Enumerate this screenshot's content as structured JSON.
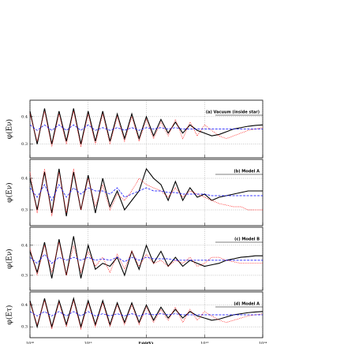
{
  "chart_data": [
    {
      "type": "line",
      "annotation": "(a) Vacuum (inside star)",
      "ylabel": "φ(Eν)",
      "log_x": true,
      "grid": true,
      "xlim": [
        10000000000.0,
        100000000000000.0
      ],
      "ylim": [
        0.25,
        0.46
      ],
      "yticks": [
        0.3,
        0.4
      ],
      "x": [
        10000000000.0,
        13300000000.0,
        17800000000.0,
        23700000000.0,
        31600000000.0,
        42200000000.0,
        56200000000.0,
        75000000000.0,
        100000000000.0,
        133000000000.0,
        178000000000.0,
        237000000000.0,
        316000000000.0,
        422000000000.0,
        562000000000.0,
        750000000000.0,
        1000000000000.0,
        1330000000000.0,
        1780000000000.0,
        2370000000000.0,
        3160000000000.0,
        4220000000000.0,
        5620000000000.0,
        7500000000000.0,
        10000000000000.0,
        13300000000000.0,
        17800000000000.0,
        23700000000000.0,
        31600000000000.0,
        42200000000000.0,
        56200000000000.0,
        75000000000000.0,
        100000000000000.0
      ],
      "series": [
        {
          "color": "#000000",
          "values": [
            0.42,
            0.3,
            0.43,
            0.3,
            0.42,
            0.31,
            0.43,
            0.3,
            0.42,
            0.31,
            0.42,
            0.31,
            0.41,
            0.32,
            0.41,
            0.32,
            0.4,
            0.33,
            0.39,
            0.34,
            0.38,
            0.34,
            0.37,
            0.35,
            0.34,
            0.33,
            0.335,
            0.345,
            0.355,
            0.36,
            0.365,
            0.368,
            0.37
          ]
        },
        {
          "color": "#ff0000",
          "values": [
            0.41,
            0.31,
            0.42,
            0.29,
            0.41,
            0.3,
            0.42,
            0.29,
            0.41,
            0.3,
            0.41,
            0.3,
            0.4,
            0.31,
            0.4,
            0.31,
            0.39,
            0.32,
            0.38,
            0.33,
            0.39,
            0.32,
            0.38,
            0.33,
            0.37,
            0.35,
            0.33,
            0.32,
            0.33,
            0.34,
            0.35,
            0.355,
            0.36
          ]
        },
        {
          "color": "#0000ff",
          "values": [
            0.37,
            0.35,
            0.37,
            0.35,
            0.37,
            0.35,
            0.37,
            0.35,
            0.37,
            0.35,
            0.36,
            0.35,
            0.36,
            0.35,
            0.36,
            0.35,
            0.36,
            0.355,
            0.36,
            0.355,
            0.36,
            0.355,
            0.355,
            0.355,
            0.355,
            0.355,
            0.355,
            0.355,
            0.355,
            0.355,
            0.355,
            0.355,
            0.355
          ]
        }
      ]
    },
    {
      "type": "line",
      "annotation": "(b) Model A",
      "ylabel": "φ(Eν)",
      "log_x": true,
      "grid": true,
      "xlim": [
        10000000000.0,
        100000000000000.0
      ],
      "ylim": [
        0.25,
        0.46
      ],
      "yticks": [
        0.3,
        0.4
      ],
      "x": [
        10000000000.0,
        13300000000.0,
        17800000000.0,
        23700000000.0,
        31600000000.0,
        42200000000.0,
        56200000000.0,
        75000000000.0,
        100000000000.0,
        133000000000.0,
        178000000000.0,
        237000000000.0,
        316000000000.0,
        422000000000.0,
        562000000000.0,
        750000000000.0,
        1000000000000.0,
        1330000000000.0,
        1780000000000.0,
        2370000000000.0,
        3160000000000.0,
        4220000000000.0,
        5620000000000.0,
        7500000000000.0,
        10000000000000.0,
        13300000000000.0,
        17800000000000.0,
        23700000000000.0,
        31600000000000.0,
        42200000000000.0,
        56200000000000.0,
        75000000000000.0,
        100000000000000.0
      ],
      "series": [
        {
          "color": "#000000",
          "values": [
            0.4,
            0.3,
            0.42,
            0.29,
            0.43,
            0.28,
            0.42,
            0.3,
            0.41,
            0.29,
            0.4,
            0.31,
            0.36,
            0.3,
            0.33,
            0.36,
            0.43,
            0.4,
            0.38,
            0.33,
            0.39,
            0.33,
            0.37,
            0.34,
            0.35,
            0.33,
            0.34,
            0.345,
            0.35,
            0.355,
            0.36,
            0.36,
            0.36
          ]
        },
        {
          "color": "#ff0000",
          "values": [
            0.42,
            0.29,
            0.43,
            0.28,
            0.42,
            0.29,
            0.43,
            0.3,
            0.4,
            0.31,
            0.38,
            0.3,
            0.35,
            0.33,
            0.36,
            0.4,
            0.38,
            0.37,
            0.36,
            0.34,
            0.37,
            0.34,
            0.36,
            0.35,
            0.34,
            0.33,
            0.32,
            0.315,
            0.31,
            0.31,
            0.3,
            0.3,
            0.3
          ]
        },
        {
          "color": "#0000ff",
          "values": [
            0.37,
            0.34,
            0.38,
            0.33,
            0.38,
            0.34,
            0.37,
            0.35,
            0.37,
            0.36,
            0.36,
            0.35,
            0.37,
            0.34,
            0.35,
            0.36,
            0.37,
            0.36,
            0.36,
            0.355,
            0.355,
            0.35,
            0.35,
            0.35,
            0.35,
            0.345,
            0.345,
            0.345,
            0.345,
            0.345,
            0.345,
            0.345,
            0.345
          ]
        }
      ]
    },
    {
      "type": "line",
      "annotation": "(c) Model B",
      "ylabel": "φ(Eν)",
      "log_x": true,
      "grid": true,
      "xlim": [
        10000000000.0,
        100000000000000.0
      ],
      "ylim": [
        0.25,
        0.46
      ],
      "yticks": [
        0.3,
        0.4
      ],
      "x": [
        10000000000.0,
        13300000000.0,
        17800000000.0,
        23700000000.0,
        31600000000.0,
        42200000000.0,
        56200000000.0,
        75000000000.0,
        100000000000.0,
        133000000000.0,
        178000000000.0,
        237000000000.0,
        316000000000.0,
        422000000000.0,
        562000000000.0,
        750000000000.0,
        1000000000000.0,
        1330000000000.0,
        1780000000000.0,
        2370000000000.0,
        3160000000000.0,
        4220000000000.0,
        5620000000000.0,
        7500000000000.0,
        10000000000000.0,
        13300000000000.0,
        17800000000000.0,
        23700000000000.0,
        31600000000000.0,
        42200000000000.0,
        56200000000000.0,
        75000000000000.0,
        100000000000000.0
      ],
      "series": [
        {
          "color": "#000000",
          "values": [
            0.38,
            0.31,
            0.41,
            0.29,
            0.42,
            0.3,
            0.43,
            0.29,
            0.4,
            0.32,
            0.34,
            0.33,
            0.36,
            0.3,
            0.38,
            0.32,
            0.4,
            0.34,
            0.38,
            0.33,
            0.36,
            0.33,
            0.35,
            0.34,
            0.33,
            0.335,
            0.34,
            0.35,
            0.355,
            0.36,
            0.362,
            0.365,
            0.365
          ]
        },
        {
          "color": "#ff0000",
          "values": [
            0.39,
            0.3,
            0.4,
            0.31,
            0.41,
            0.3,
            0.4,
            0.31,
            0.38,
            0.33,
            0.36,
            0.31,
            0.37,
            0.32,
            0.38,
            0.33,
            0.37,
            0.34,
            0.35,
            0.33,
            0.35,
            0.34,
            0.36,
            0.33,
            0.34,
            0.36,
            0.36,
            0.35,
            0.345,
            0.34,
            0.34,
            0.34,
            0.34
          ]
        },
        {
          "color": "#0000ff",
          "values": [
            0.36,
            0.34,
            0.37,
            0.34,
            0.36,
            0.35,
            0.36,
            0.35,
            0.36,
            0.35,
            0.355,
            0.35,
            0.36,
            0.345,
            0.36,
            0.35,
            0.36,
            0.355,
            0.355,
            0.355,
            0.35,
            0.35,
            0.35,
            0.35,
            0.35,
            0.35,
            0.35,
            0.35,
            0.35,
            0.35,
            0.35,
            0.35,
            0.35
          ]
        }
      ]
    },
    {
      "type": "line",
      "annotation": "(d) Model A",
      "ylabel": "φ(Eτ)",
      "log_x": true,
      "grid": true,
      "xlim": [
        10000000000.0,
        100000000000000.0
      ],
      "ylim": [
        0.25,
        0.46
      ],
      "yticks": [
        0.3,
        0.4
      ],
      "xlabel": "Eν(eV)",
      "xticks": [
        {
          "value": 10000000000.0,
          "label": "10¹⁰"
        },
        {
          "value": 100000000000.0,
          "label": "10¹¹"
        },
        {
          "value": 1000000000000.0,
          "label": "10¹²"
        },
        {
          "value": 10000000000000.0,
          "label": "10¹³"
        },
        {
          "value": 100000000000000.0,
          "label": "10¹⁴"
        }
      ],
      "x": [
        10000000000.0,
        13300000000.0,
        17800000000.0,
        23700000000.0,
        31600000000.0,
        42200000000.0,
        56200000000.0,
        75000000000.0,
        100000000000.0,
        133000000000.0,
        178000000000.0,
        237000000000.0,
        316000000000.0,
        422000000000.0,
        562000000000.0,
        750000000000.0,
        1000000000000.0,
        1330000000000.0,
        1780000000000.0,
        2370000000000.0,
        3160000000000.0,
        4220000000000.0,
        5620000000000.0,
        7500000000000.0,
        10000000000000.0,
        13300000000000.0,
        17800000000000.0,
        23700000000000.0,
        31600000000000.0,
        42200000000000.0,
        56200000000000.0,
        75000000000000.0,
        100000000000000.0
      ],
      "series": [
        {
          "color": "#000000",
          "values": [
            0.42,
            0.3,
            0.43,
            0.3,
            0.42,
            0.31,
            0.43,
            0.3,
            0.42,
            0.31,
            0.42,
            0.31,
            0.41,
            0.32,
            0.41,
            0.32,
            0.4,
            0.33,
            0.39,
            0.34,
            0.38,
            0.34,
            0.37,
            0.35,
            0.34,
            0.33,
            0.335,
            0.345,
            0.355,
            0.36,
            0.365,
            0.368,
            0.37
          ]
        },
        {
          "color": "#ff0000",
          "values": [
            0.41,
            0.31,
            0.42,
            0.29,
            0.41,
            0.3,
            0.42,
            0.29,
            0.41,
            0.3,
            0.41,
            0.3,
            0.4,
            0.31,
            0.4,
            0.31,
            0.39,
            0.32,
            0.38,
            0.33,
            0.39,
            0.32,
            0.38,
            0.33,
            0.37,
            0.35,
            0.33,
            0.32,
            0.33,
            0.34,
            0.35,
            0.355,
            0.36
          ]
        },
        {
          "color": "#0000ff",
          "values": [
            0.37,
            0.35,
            0.37,
            0.35,
            0.37,
            0.35,
            0.37,
            0.35,
            0.37,
            0.35,
            0.36,
            0.35,
            0.36,
            0.35,
            0.36,
            0.35,
            0.36,
            0.355,
            0.36,
            0.355,
            0.36,
            0.355,
            0.355,
            0.355,
            0.355,
            0.355,
            0.355,
            0.355,
            0.355,
            0.355,
            0.355,
            0.355,
            0.355
          ]
        }
      ]
    }
  ]
}
